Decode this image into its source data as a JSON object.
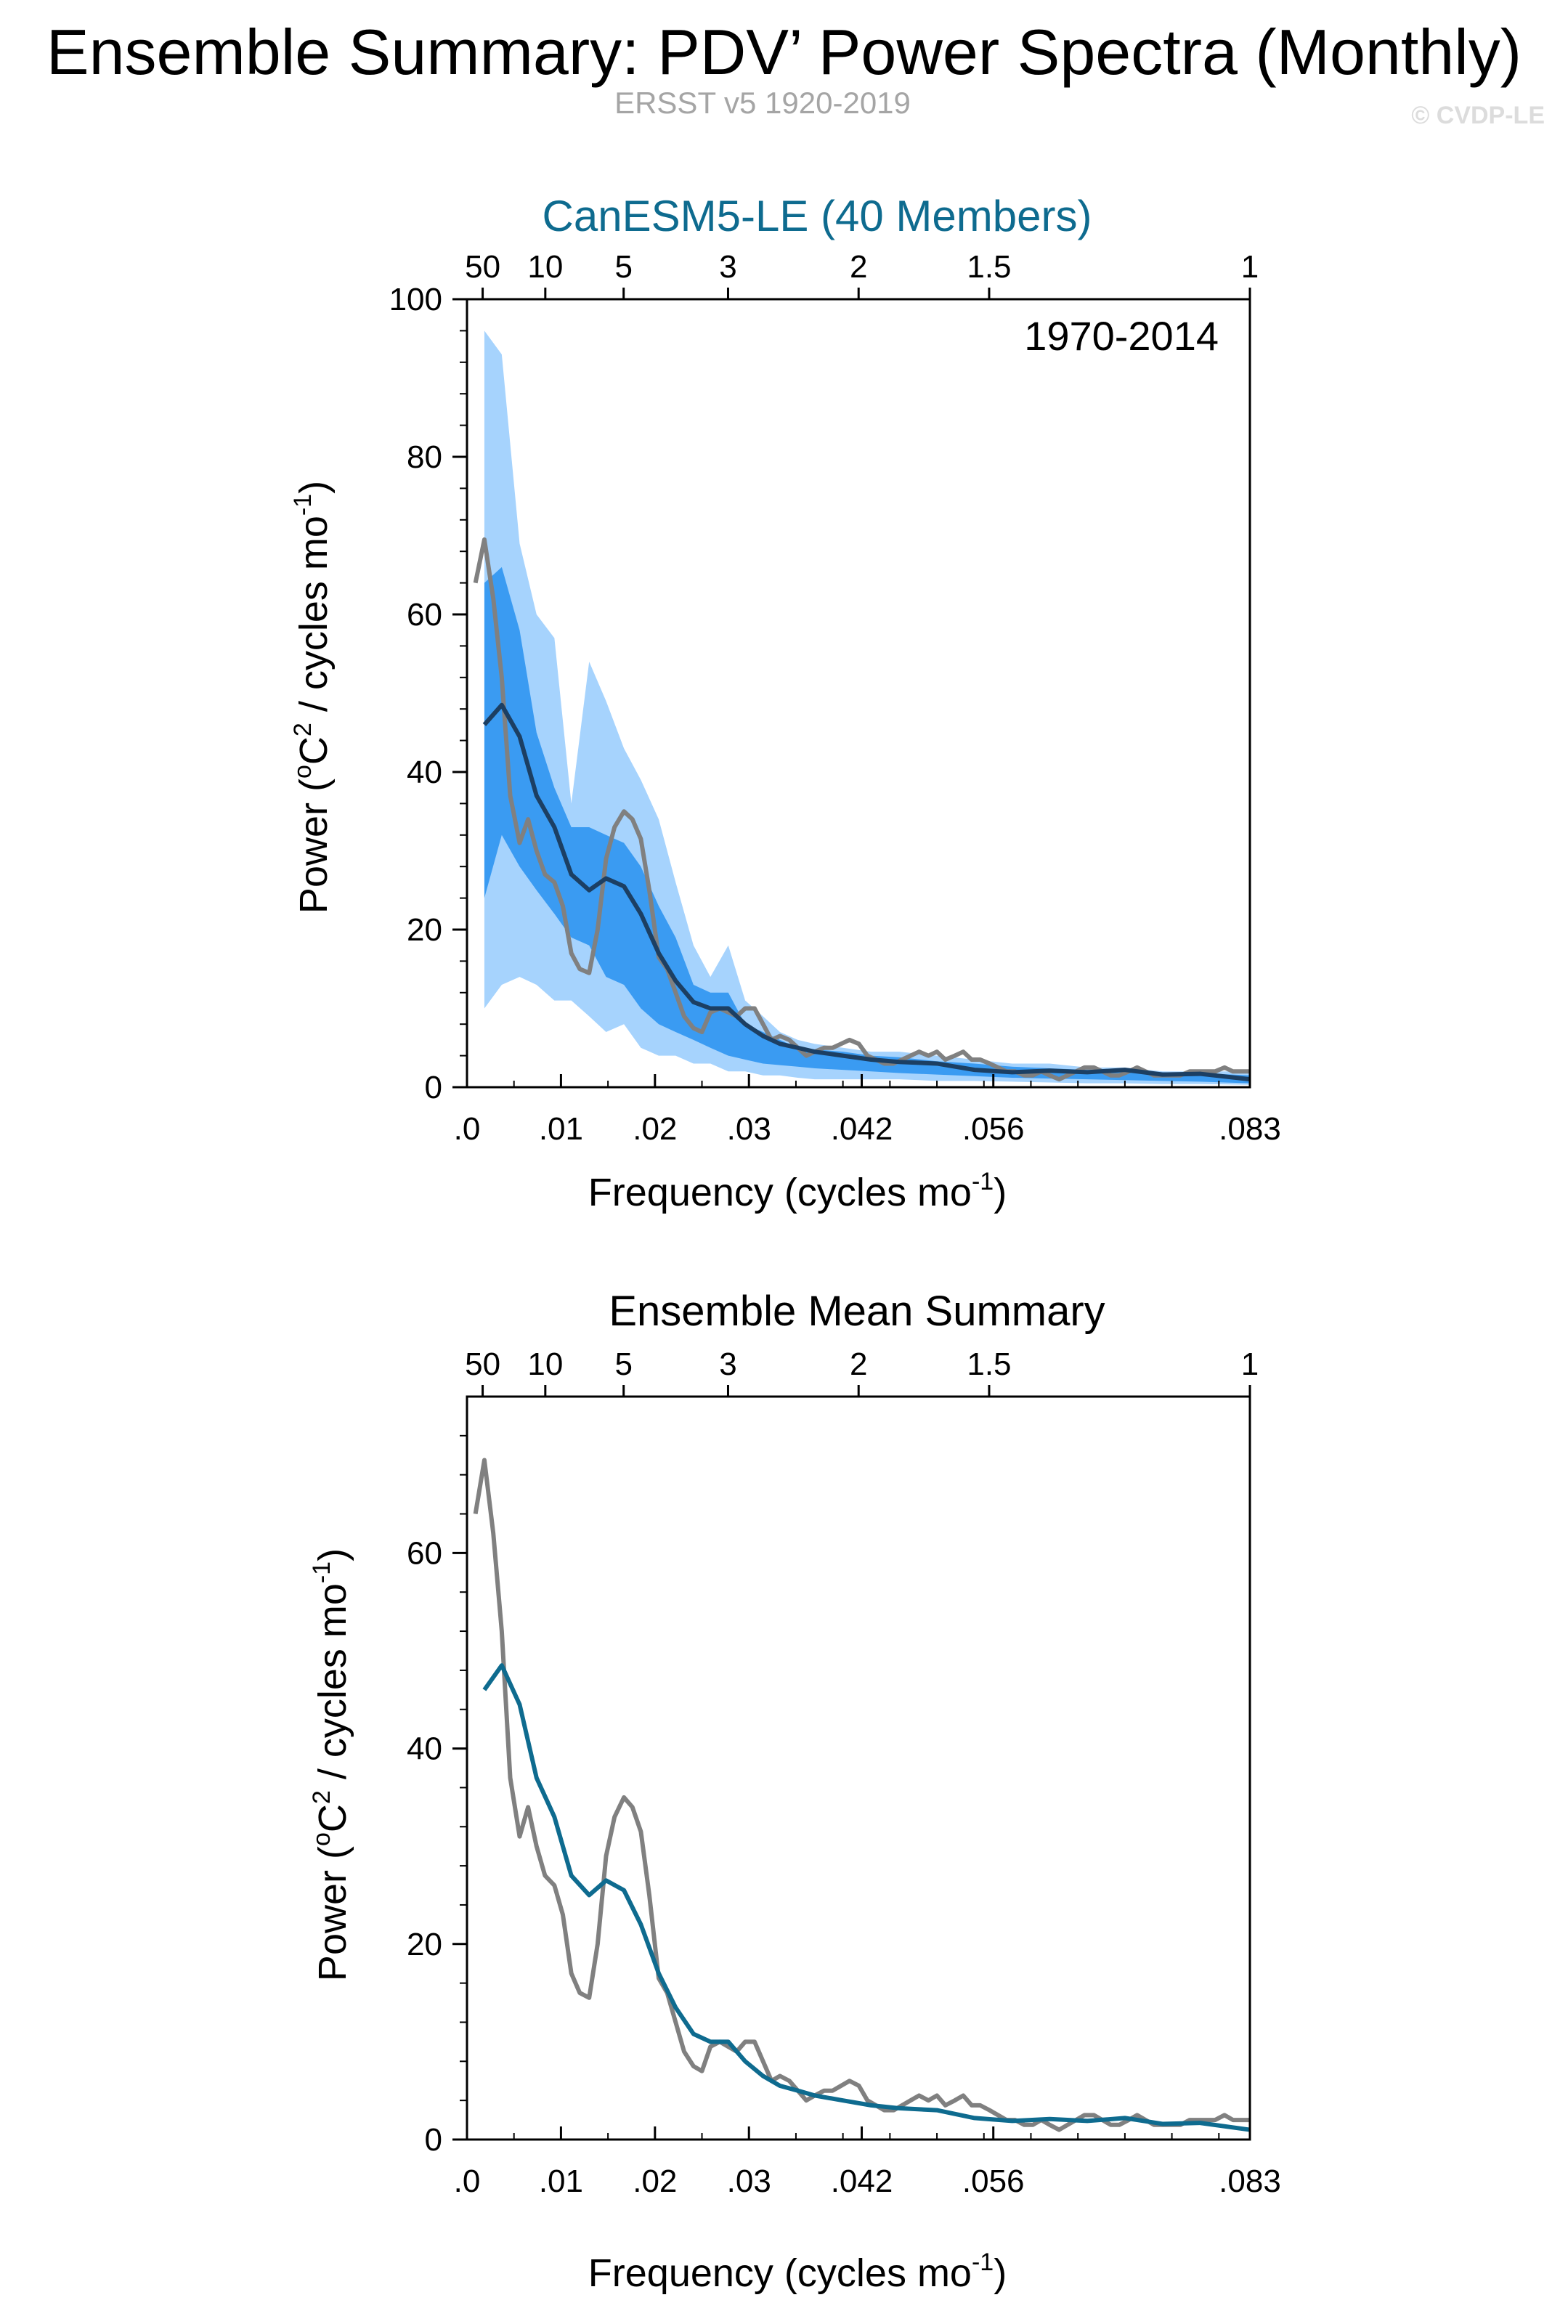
{
  "title": "Ensemble Summary: PDV’ Power Spectra (Monthly)",
  "subtitle": "ERSST v5 1920-2019",
  "copyright": "© CVDP-LE",
  "colors": {
    "model": "#0e6b8f",
    "observed": "#808080",
    "band_outer": "#a6d3fd",
    "band_inner": "#3a9bf2",
    "ensemble_mean_dark": "#1c3f63",
    "axis": "#000000"
  },
  "chart_data": [
    {
      "type": "area",
      "panel": "top",
      "title": "CanESM5-LE (40 Members)",
      "annotation": "1970-2014",
      "xlabel": "Frequency (cycles mo",
      "xlabel_sup": "-1",
      "xlabel_end": ")",
      "ylabel": "Power (",
      "ylabel_sup1": "o",
      "ylabel_mid": "C",
      "ylabel_sup2": "2",
      "ylabel_mid2": " / cycles mo",
      "ylabel_sup3": "-1",
      "ylabel_end": ")",
      "xlim": [
        0,
        0.0833
      ],
      "ylim": [
        0,
        100
      ],
      "x_ticks": [
        {
          "v": 0.0,
          "label": ".0"
        },
        {
          "v": 0.01,
          "label": ".01"
        },
        {
          "v": 0.02,
          "label": ".02"
        },
        {
          "v": 0.03,
          "label": ".03"
        },
        {
          "v": 0.042,
          "label": ".042"
        },
        {
          "v": 0.056,
          "label": ".056"
        },
        {
          "v": 0.0833,
          "label": ".083"
        }
      ],
      "y_ticks": [
        0,
        20,
        40,
        60,
        80,
        100
      ],
      "period_ticks": [
        {
          "v": 0.001667,
          "label": "50"
        },
        {
          "v": 0.008333,
          "label": "10"
        },
        {
          "v": 0.016667,
          "label": "5"
        },
        {
          "v": 0.027778,
          "label": "3"
        },
        {
          "v": 0.041667,
          "label": "2"
        },
        {
          "v": 0.055556,
          "label": "1.5"
        },
        {
          "v": 0.0833,
          "label": "1"
        }
      ],
      "series": [
        {
          "name": "ensemble_range_outer",
          "x": [
            0.00185,
            0.0037,
            0.0056,
            0.0074,
            0.0093,
            0.0111,
            0.013,
            0.0148,
            0.0167,
            0.0185,
            0.0204,
            0.0222,
            0.0241,
            0.0259,
            0.0278,
            0.0296,
            0.0315,
            0.0333,
            0.0352,
            0.037,
            0.04,
            0.043,
            0.046,
            0.05,
            0.054,
            0.058,
            0.062,
            0.066,
            0.07,
            0.074,
            0.078,
            0.0833
          ],
          "upper": [
            96,
            93,
            69,
            60,
            57,
            36,
            54,
            49,
            43,
            39,
            34,
            26,
            18,
            14,
            18,
            11,
            9,
            7,
            6,
            5.5,
            5,
            4.5,
            4.5,
            4,
            3.5,
            3,
            3,
            2.5,
            2.5,
            2,
            2,
            2
          ],
          "lower": [
            10,
            13,
            14,
            13,
            11,
            11,
            9,
            7,
            8,
            5,
            4,
            4,
            3,
            3,
            2,
            2,
            1.5,
            1.5,
            1.2,
            1,
            1,
            1,
            1,
            0.8,
            0.8,
            0.7,
            0.6,
            0.5,
            0.5,
            0.4,
            0.4,
            0.3
          ]
        },
        {
          "name": "ensemble_range_inner",
          "x": [
            0.00185,
            0.0037,
            0.0056,
            0.0074,
            0.0093,
            0.0111,
            0.013,
            0.0148,
            0.0167,
            0.0185,
            0.0204,
            0.0222,
            0.0241,
            0.0259,
            0.0278,
            0.0296,
            0.0315,
            0.0333,
            0.0352,
            0.037,
            0.04,
            0.043,
            0.046,
            0.05,
            0.054,
            0.058,
            0.062,
            0.066,
            0.07,
            0.074,
            0.078,
            0.0833
          ],
          "upper": [
            64,
            66,
            58,
            45,
            38,
            33,
            33,
            32,
            31,
            28,
            23,
            19,
            13,
            12,
            12,
            8,
            7,
            6,
            5,
            4.8,
            4.5,
            4,
            3.8,
            3.3,
            3,
            2.6,
            2.4,
            2.2,
            2,
            1.9,
            1.8,
            1.5
          ],
          "lower": [
            24,
            32,
            28,
            25,
            22,
            19,
            18,
            14,
            13,
            10,
            8,
            7,
            6,
            5,
            4,
            3.5,
            3,
            2.8,
            2.6,
            2.4,
            2.2,
            2,
            1.8,
            1.6,
            1.4,
            1.2,
            1.1,
            1,
            0.9,
            0.8,
            0.7,
            0.5
          ]
        },
        {
          "name": "ensemble_mean",
          "x": [
            0.00185,
            0.0037,
            0.0056,
            0.0074,
            0.0093,
            0.0111,
            0.013,
            0.0148,
            0.0167,
            0.0185,
            0.0204,
            0.0222,
            0.0241,
            0.0259,
            0.0278,
            0.0296,
            0.0315,
            0.0333,
            0.0352,
            0.037,
            0.04,
            0.043,
            0.046,
            0.05,
            0.054,
            0.058,
            0.062,
            0.066,
            0.07,
            0.074,
            0.078,
            0.0833
          ],
          "values": [
            46,
            48.5,
            44.5,
            37,
            33,
            27,
            25,
            26.5,
            25.5,
            22,
            17,
            13.5,
            10.8,
            10,
            10,
            8,
            6.5,
            5.5,
            5,
            4.5,
            4,
            3.5,
            3.2,
            3,
            2.2,
            1.9,
            2.1,
            1.9,
            2.2,
            1.6,
            1.7,
            1
          ]
        },
        {
          "name": "observed",
          "x": [
            0.0009,
            0.00185,
            0.0028,
            0.0037,
            0.0046,
            0.0056,
            0.0065,
            0.0074,
            0.0083,
            0.0093,
            0.0102,
            0.0111,
            0.012,
            0.013,
            0.0139,
            0.0148,
            0.0157,
            0.0167,
            0.0176,
            0.0185,
            0.0194,
            0.0204,
            0.0213,
            0.0222,
            0.0231,
            0.0241,
            0.025,
            0.0259,
            0.0269,
            0.0278,
            0.0287,
            0.0296,
            0.0306,
            0.0315,
            0.0324,
            0.0333,
            0.0343,
            0.0352,
            0.0361,
            0.037,
            0.038,
            0.0389,
            0.0398,
            0.0407,
            0.0417,
            0.0426,
            0.0435,
            0.0444,
            0.0454,
            0.0463,
            0.0472,
            0.0481,
            0.0491,
            0.05,
            0.0509,
            0.0519,
            0.0528,
            0.0537,
            0.0546,
            0.0556,
            0.0565,
            0.0574,
            0.0583,
            0.0593,
            0.0602,
            0.0611,
            0.062,
            0.063,
            0.0639,
            0.0648,
            0.0657,
            0.0667,
            0.0676,
            0.0685,
            0.0694,
            0.0704,
            0.0713,
            0.0722,
            0.0731,
            0.0741,
            0.075,
            0.0759,
            0.0769,
            0.0778,
            0.0787,
            0.0796,
            0.0806,
            0.0815,
            0.0824,
            0.0833
          ],
          "values": [
            64,
            69.5,
            62,
            52,
            37,
            31,
            34,
            30,
            27,
            26,
            23,
            17,
            15,
            14.5,
            20,
            29,
            33,
            35,
            34,
            31.5,
            25,
            16.5,
            15,
            12,
            9,
            7.5,
            7,
            9.5,
            10,
            9.5,
            9,
            10,
            10,
            8,
            6,
            6.5,
            6,
            5,
            4,
            4.5,
            5,
            5,
            5.5,
            6,
            5.5,
            4,
            3.5,
            3,
            3,
            3.5,
            4,
            4.5,
            4,
            4.5,
            3.5,
            4,
            4.5,
            3.5,
            3.5,
            3,
            2.5,
            2,
            2,
            1.5,
            1.5,
            2,
            1.5,
            1,
            1.5,
            2,
            2.5,
            2.5,
            2,
            1.5,
            1.5,
            2,
            2.5,
            2,
            1.5,
            1.5,
            1.5,
            1.5,
            2,
            2,
            2,
            2,
            2.5,
            2,
            2,
            2
          ]
        }
      ]
    },
    {
      "type": "line",
      "panel": "bottom",
      "title": "Ensemble Mean Summary",
      "xlabel": "Frequency (cycles mo",
      "xlabel_sup": "-1",
      "xlabel_end": ")",
      "ylabel": "Power (",
      "ylabel_sup1": "o",
      "ylabel_mid": "C",
      "ylabel_sup2": "2",
      "ylabel_mid2": " / cycles mo",
      "ylabel_sup3": "-1",
      "ylabel_end": ")",
      "xlim": [
        0,
        0.0833
      ],
      "ylim": [
        0,
        76
      ],
      "x_ticks": [
        {
          "v": 0.0,
          "label": ".0"
        },
        {
          "v": 0.01,
          "label": ".01"
        },
        {
          "v": 0.02,
          "label": ".02"
        },
        {
          "v": 0.03,
          "label": ".03"
        },
        {
          "v": 0.042,
          "label": ".042"
        },
        {
          "v": 0.056,
          "label": ".056"
        },
        {
          "v": 0.0833,
          "label": ".083"
        }
      ],
      "y_ticks": [
        0,
        20,
        40,
        60
      ],
      "period_ticks": [
        {
          "v": 0.001667,
          "label": "50"
        },
        {
          "v": 0.008333,
          "label": "10"
        },
        {
          "v": 0.016667,
          "label": "5"
        },
        {
          "v": 0.027778,
          "label": "3"
        },
        {
          "v": 0.041667,
          "label": "2"
        },
        {
          "v": 0.055556,
          "label": "1.5"
        },
        {
          "v": 0.0833,
          "label": "1"
        }
      ],
      "series": [
        {
          "name": "ensemble_mean",
          "x": [
            0.00185,
            0.0037,
            0.0056,
            0.0074,
            0.0093,
            0.0111,
            0.013,
            0.0148,
            0.0167,
            0.0185,
            0.0204,
            0.0222,
            0.0241,
            0.0259,
            0.0278,
            0.0296,
            0.0315,
            0.0333,
            0.0352,
            0.037,
            0.04,
            0.043,
            0.046,
            0.05,
            0.054,
            0.058,
            0.062,
            0.066,
            0.07,
            0.074,
            0.078,
            0.0833
          ],
          "values": [
            46,
            48.5,
            44.5,
            37,
            33,
            27,
            25,
            26.5,
            25.5,
            22,
            17,
            13.5,
            10.8,
            10,
            10,
            8,
            6.5,
            5.5,
            5,
            4.5,
            4,
            3.5,
            3.2,
            3,
            2.2,
            1.9,
            2.1,
            1.9,
            2.2,
            1.6,
            1.7,
            1
          ]
        },
        {
          "name": "observed",
          "x": [
            0.0009,
            0.00185,
            0.0028,
            0.0037,
            0.0046,
            0.0056,
            0.0065,
            0.0074,
            0.0083,
            0.0093,
            0.0102,
            0.0111,
            0.012,
            0.013,
            0.0139,
            0.0148,
            0.0157,
            0.0167,
            0.0176,
            0.0185,
            0.0194,
            0.0204,
            0.0213,
            0.0222,
            0.0231,
            0.0241,
            0.025,
            0.0259,
            0.0269,
            0.0278,
            0.0287,
            0.0296,
            0.0306,
            0.0315,
            0.0324,
            0.0333,
            0.0343,
            0.0352,
            0.0361,
            0.037,
            0.038,
            0.0389,
            0.0398,
            0.0407,
            0.0417,
            0.0426,
            0.0435,
            0.0444,
            0.0454,
            0.0463,
            0.0472,
            0.0481,
            0.0491,
            0.05,
            0.0509,
            0.0519,
            0.0528,
            0.0537,
            0.0546,
            0.0556,
            0.0565,
            0.0574,
            0.0583,
            0.0593,
            0.0602,
            0.0611,
            0.062,
            0.063,
            0.0639,
            0.0648,
            0.0657,
            0.0667,
            0.0676,
            0.0685,
            0.0694,
            0.0704,
            0.0713,
            0.0722,
            0.0731,
            0.0741,
            0.075,
            0.0759,
            0.0769,
            0.0778,
            0.0787,
            0.0796,
            0.0806,
            0.0815,
            0.0824,
            0.0833
          ],
          "values": [
            64,
            69.5,
            62,
            52,
            37,
            31,
            34,
            30,
            27,
            26,
            23,
            17,
            15,
            14.5,
            20,
            29,
            33,
            35,
            34,
            31.5,
            25,
            16.5,
            15,
            12,
            9,
            7.5,
            7,
            9.5,
            10,
            9.5,
            9,
            10,
            10,
            8,
            6,
            6.5,
            6,
            5,
            4,
            4.5,
            5,
            5,
            5.5,
            6,
            5.5,
            4,
            3.5,
            3,
            3,
            3.5,
            4,
            4.5,
            4,
            4.5,
            3.5,
            4,
            4.5,
            3.5,
            3.5,
            3,
            2.5,
            2,
            2,
            1.5,
            1.5,
            2,
            1.5,
            1,
            1.5,
            2,
            2.5,
            2.5,
            2,
            1.5,
            1.5,
            2,
            2.5,
            2,
            1.5,
            1.5,
            1.5,
            1.5,
            2,
            2,
            2,
            2,
            2.5,
            2,
            2,
            2
          ]
        }
      ]
    }
  ]
}
